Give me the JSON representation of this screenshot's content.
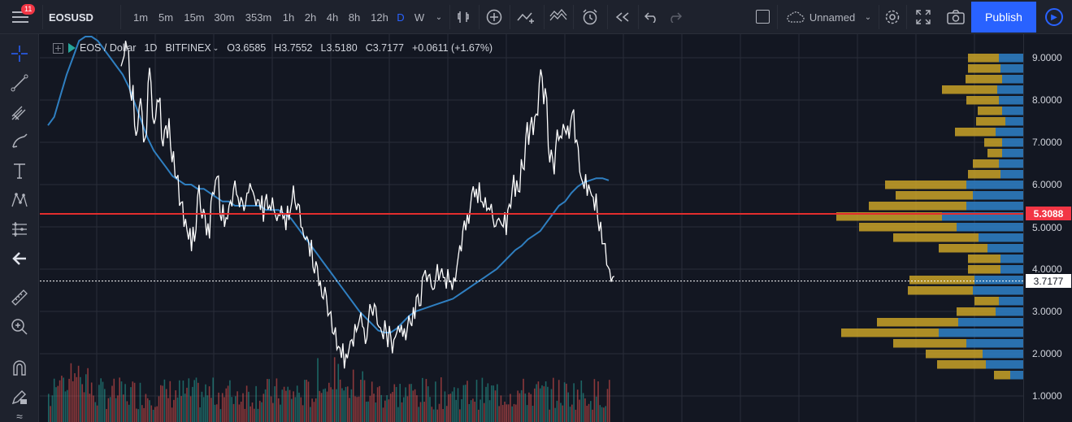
{
  "toolbar": {
    "notifications": "11",
    "symbol": "EOSUSD",
    "intervals": [
      "1m",
      "5m",
      "15m",
      "30m",
      "353m",
      "1h",
      "2h",
      "4h",
      "8h",
      "12h",
      "D",
      "W"
    ],
    "active_interval": "D",
    "layout_name": "Unnamed",
    "publish_label": "Publish"
  },
  "legend": {
    "symbol": "EOS / Dollar",
    "interval": "1D",
    "exchange": "BITFINEX",
    "open_label": "O",
    "open": "3.6585",
    "high_label": "H",
    "high": "3.7552",
    "low_label": "L",
    "low": "3.5180",
    "close_label": "C",
    "close": "3.7177",
    "change": "+0.0611 (+1.67%)"
  },
  "colors": {
    "background": "#131722",
    "accent": "#2962ff",
    "price_line": "#ffffff",
    "moving_average": "#2f7fc1",
    "horizontal_line": "#e22d2d",
    "volume_up": "#26a69a",
    "volume_down": "#ef5350",
    "vp_up": "#c9a227",
    "vp_down": "#2e7bbf"
  },
  "chart_data": {
    "type": "line",
    "price_axis": {
      "ticks": [
        "9.0000",
        "8.0000",
        "7.0000",
        "6.0000",
        "5.0000",
        "4.0000",
        "3.0000",
        "2.0000",
        "1.0000"
      ],
      "range": [
        0.8,
        9.6
      ]
    },
    "horizontal_line_label": "5.3088",
    "current_price_label": "3.7177",
    "price_path": [
      8.8,
      9.4,
      8.2,
      7.4,
      7.8,
      7.0,
      8.4,
      7.6,
      8.0,
      7.1,
      7.4,
      6.9,
      6.2,
      5.5,
      5.0,
      4.7,
      5.0,
      5.7,
      5.2,
      4.8,
      5.6,
      6.1,
      5.3,
      5.0,
      5.5,
      5.9,
      5.7,
      5.6,
      5.8,
      5.9,
      5.5,
      5.4,
      5.6,
      5.5,
      5.4,
      5.3,
      5.2,
      5.5,
      5.6,
      5.4,
      5.0,
      4.7,
      4.3,
      3.9,
      3.6,
      3.3,
      2.9,
      2.5,
      2.1,
      1.9,
      2.0,
      2.3,
      2.7,
      2.8,
      2.6,
      2.8,
      2.9,
      2.7,
      2.5,
      2.5,
      2.4,
      2.4,
      2.5,
      2.6,
      2.9,
      3.1,
      3.4,
      3.8,
      3.7,
      3.6,
      3.8,
      3.9,
      3.8,
      3.7,
      3.8,
      4.3,
      4.9,
      5.3,
      5.8,
      5.9,
      5.6,
      5.7,
      5.4,
      5.0,
      5.2,
      5.0,
      5.4,
      5.9,
      6.1,
      6.6,
      7.1,
      7.4,
      7.6,
      8.4,
      7.9,
      6.9,
      6.6,
      7.3,
      7.1,
      7.2,
      7.5,
      7.0,
      6.3,
      5.9,
      6.0,
      5.7,
      5.2,
      4.6,
      4.1,
      3.7
    ],
    "moving_average": [
      7.4,
      7.6,
      8.1,
      8.6,
      9.0,
      9.4,
      9.5,
      9.5,
      9.4,
      9.2,
      9.0,
      8.8,
      8.6,
      8.3,
      7.9,
      7.5,
      7.1,
      6.8,
      6.6,
      6.4,
      6.2,
      6.1,
      6.0,
      6.0,
      5.9,
      5.9,
      5.8,
      5.7,
      5.6,
      5.6,
      5.5,
      5.5,
      5.5,
      5.5,
      5.5,
      5.4,
      5.4,
      5.4,
      5.3,
      5.2,
      5.0,
      4.8,
      4.6,
      4.4,
      4.2,
      4.0,
      3.8,
      3.6,
      3.4,
      3.2,
      3.0,
      2.85,
      2.7,
      2.55,
      2.5,
      2.5,
      2.6,
      2.75,
      2.9,
      3.0,
      3.05,
      3.1,
      3.15,
      3.2,
      3.25,
      3.3,
      3.4,
      3.5,
      3.6,
      3.7,
      3.8,
      3.9,
      4.0,
      4.15,
      4.3,
      4.45,
      4.55,
      4.7,
      4.8,
      4.9,
      5.1,
      5.3,
      5.5,
      5.6,
      5.8,
      5.95,
      6.05,
      6.1,
      6.15,
      6.15,
      6.1
    ],
    "volume_profile": [
      {
        "price": 9.0,
        "up": 38,
        "down": 30
      },
      {
        "price": 8.75,
        "up": 40,
        "down": 28
      },
      {
        "price": 8.5,
        "up": 45,
        "down": 26
      },
      {
        "price": 8.25,
        "up": 68,
        "down": 32
      },
      {
        "price": 8.0,
        "up": 40,
        "down": 30
      },
      {
        "price": 7.75,
        "up": 30,
        "down": 26
      },
      {
        "price": 7.5,
        "up": 36,
        "down": 22
      },
      {
        "price": 7.25,
        "up": 50,
        "down": 34
      },
      {
        "price": 7.0,
        "up": 22,
        "down": 26
      },
      {
        "price": 6.75,
        "up": 18,
        "down": 26
      },
      {
        "price": 6.5,
        "up": 32,
        "down": 30
      },
      {
        "price": 6.25,
        "up": 40,
        "down": 28
      },
      {
        "price": 6.0,
        "up": 100,
        "down": 70
      },
      {
        "price": 5.75,
        "up": 95,
        "down": 62
      },
      {
        "price": 5.5,
        "up": 120,
        "down": 70
      },
      {
        "price": 5.25,
        "up": 130,
        "down": 100
      },
      {
        "price": 5.0,
        "up": 120,
        "down": 82
      },
      {
        "price": 4.75,
        "up": 105,
        "down": 55
      },
      {
        "price": 4.5,
        "up": 60,
        "down": 44
      },
      {
        "price": 4.25,
        "up": 40,
        "down": 28
      },
      {
        "price": 4.0,
        "up": 40,
        "down": 28
      },
      {
        "price": 3.75,
        "up": 80,
        "down": 60
      },
      {
        "price": 3.5,
        "up": 80,
        "down": 62
      },
      {
        "price": 3.25,
        "up": 30,
        "down": 30
      },
      {
        "price": 3.0,
        "up": 48,
        "down": 34
      },
      {
        "price": 2.75,
        "up": 100,
        "down": 80
      },
      {
        "price": 2.5,
        "up": 120,
        "down": 104
      },
      {
        "price": 2.25,
        "up": 90,
        "down": 70
      },
      {
        "price": 2.0,
        "up": 70,
        "down": 50
      },
      {
        "price": 1.75,
        "up": 60,
        "down": 46
      },
      {
        "price": 1.5,
        "up": 20,
        "down": 16
      }
    ]
  }
}
